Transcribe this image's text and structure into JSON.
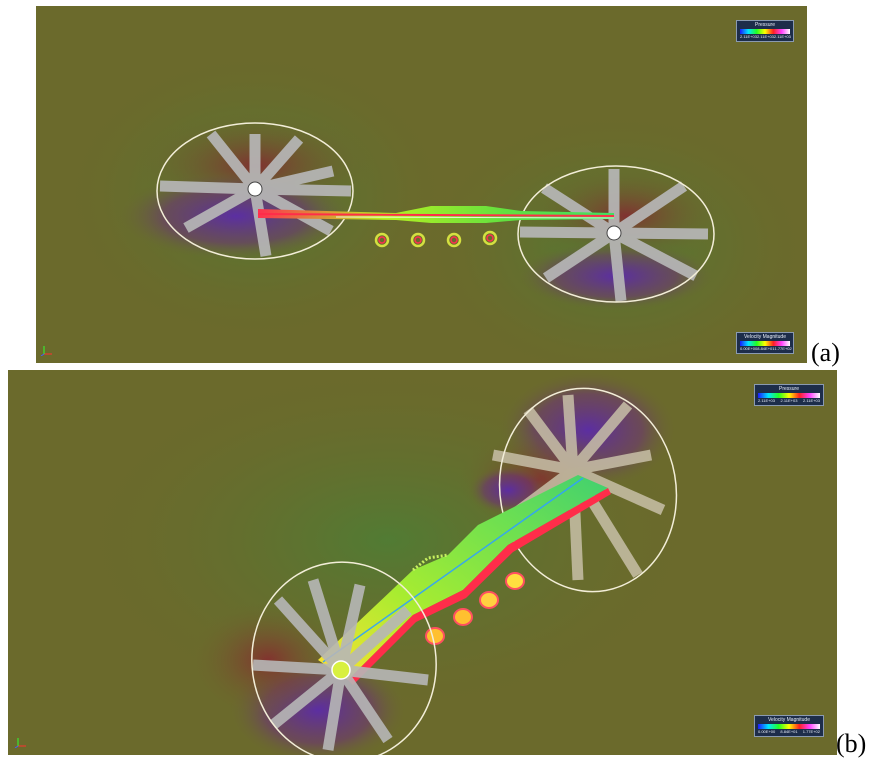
{
  "panels": [
    {
      "label": "(a)",
      "legend_top": {
        "title": "Pressure",
        "ticks": [
          "2.11E+03",
          "2.11E+03",
          "2.11E+03"
        ]
      },
      "legend_bottom": {
        "title": "Velocity Magnitude",
        "ticks": [
          "0.00E+00",
          "8.84E+01",
          "1.77E+02"
        ]
      }
    },
    {
      "label": "(b)",
      "legend_top": {
        "title": "Pressure",
        "ticks": [
          "2.11E+03",
          "2.11E+03",
          "2.11E+03"
        ]
      },
      "legend_bottom": {
        "title": "Velocity Magnitude",
        "ticks": [
          "0.00E+00",
          "8.84E+01",
          "1.77E+02"
        ]
      }
    }
  ],
  "colors": {
    "background_field": "#6b6a2c",
    "low_pressure": "#5a2aa0",
    "high_pressure": "#7a1f3a",
    "blade": "#b7b7b7",
    "rotor_disk_outline": "#f3eed8",
    "body_green": "#8ee63a",
    "body_red": "#ff2d4a"
  }
}
